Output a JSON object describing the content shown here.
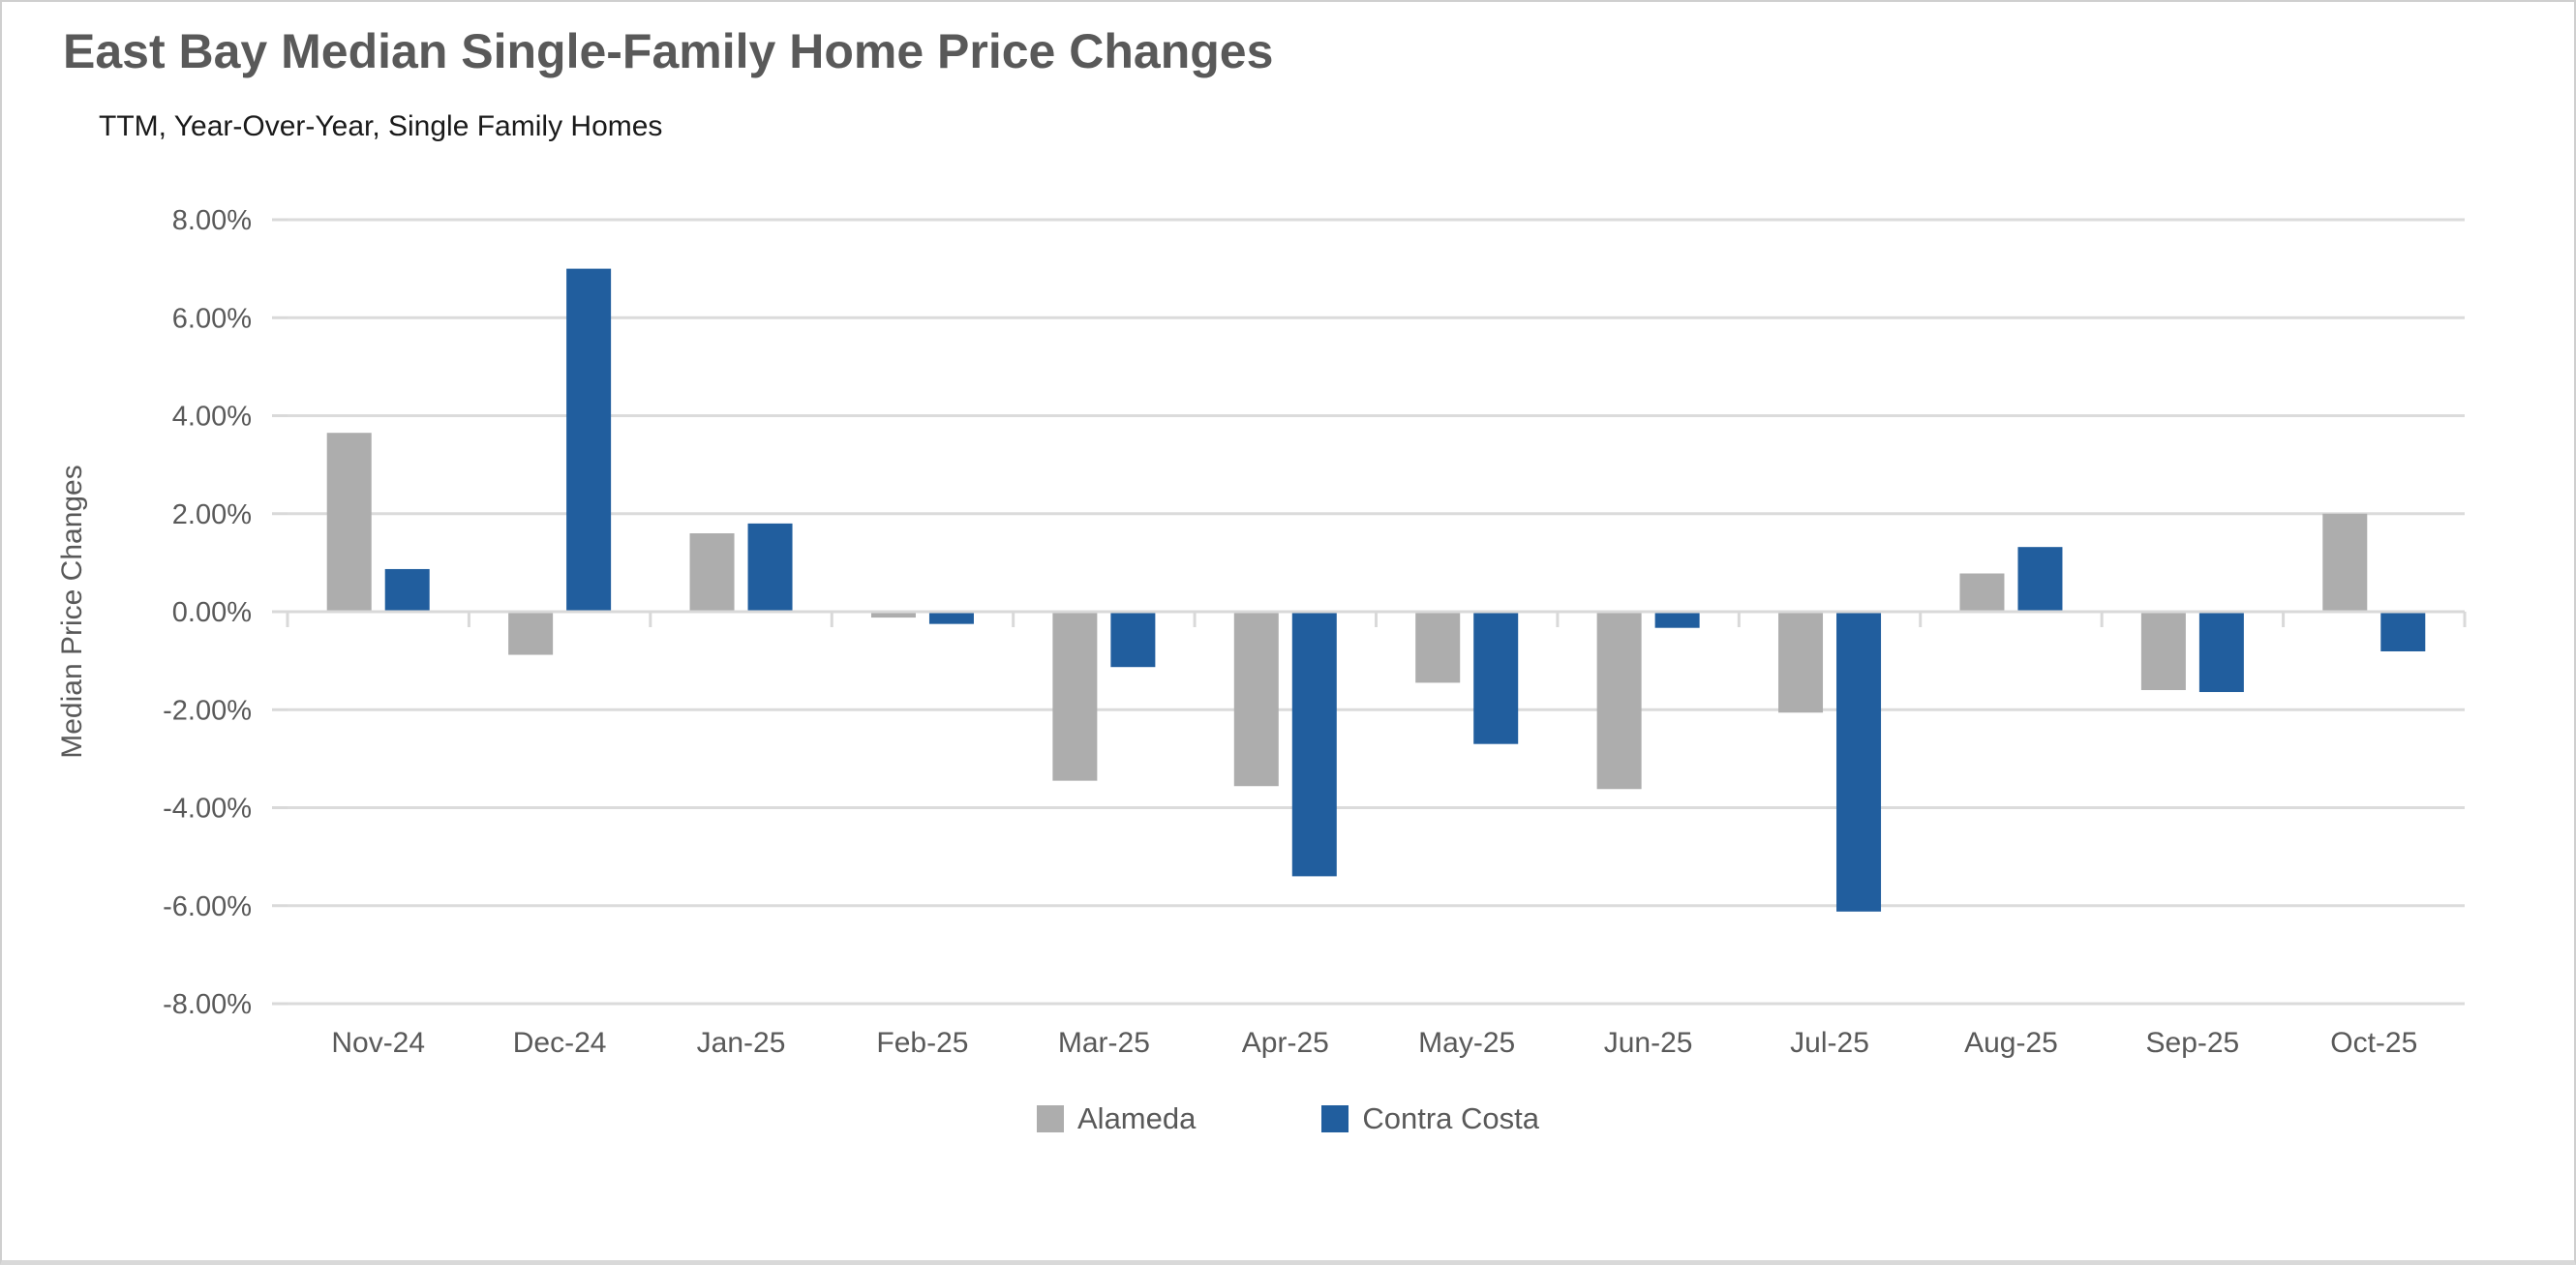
{
  "chart_data": {
    "type": "bar",
    "title": "East Bay Median Single-Family Home Price Changes",
    "subtitle": "TTM, Year-Over-Year, Single Family Homes",
    "ylabel": "Median Price Changes",
    "xlabel": "",
    "value_unit": "%",
    "ylim": [
      -8,
      8
    ],
    "ytick_step": 2,
    "y_tick_labels": [
      "8.00%",
      "6.00%",
      "4.00%",
      "2.00%",
      "0.00%",
      "-2.00%",
      "-4.00%",
      "-6.00%",
      "-8.00%"
    ],
    "grid": true,
    "legend_position": "bottom",
    "categories": [
      "Nov-24",
      "Dec-24",
      "Jan-25",
      "Feb-25",
      "Mar-25",
      "Apr-25",
      "May-25",
      "Jun-25",
      "Jul-25",
      "Aug-25",
      "Sep-25",
      "Oct-25"
    ],
    "series": [
      {
        "name": "Alameda",
        "color": "#ADADAD",
        "values": [
          3.65,
          -0.88,
          1.6,
          -0.12,
          -3.45,
          -3.56,
          -1.45,
          -3.62,
          -2.06,
          0.78,
          -1.6,
          2.0
        ]
      },
      {
        "name": "Contra Costa",
        "color": "#215E9E",
        "values": [
          0.87,
          7.0,
          1.8,
          -0.25,
          -1.13,
          -5.4,
          -2.7,
          -0.33,
          -6.12,
          1.32,
          -1.64,
          -0.81
        ]
      }
    ]
  },
  "colors": {
    "grid": "#DBDBDB",
    "axis_line": "#D9D9D9",
    "axis_text": "#595959",
    "title_text": "#595959",
    "subtitle_text": "#1A1A1A"
  }
}
